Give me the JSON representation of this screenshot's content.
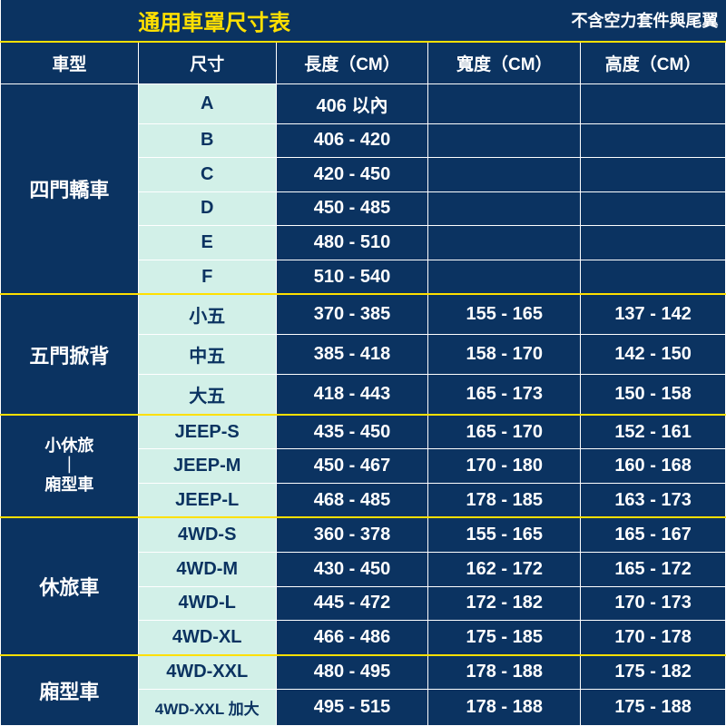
{
  "title": "通用車罩尺寸表",
  "subtitle": "不含空力套件與尾翼",
  "columns": [
    "車型",
    "尺寸",
    "長度（CM）",
    "寬度（CM）",
    "高度（CM）"
  ],
  "groups": [
    {
      "category": "四門轎車",
      "rows": [
        {
          "size": "A",
          "length": "406 以內",
          "width": "",
          "height": ""
        },
        {
          "size": "B",
          "length": "406 - 420",
          "width": "",
          "height": ""
        },
        {
          "size": "C",
          "length": "420 - 450",
          "width": "",
          "height": ""
        },
        {
          "size": "D",
          "length": "450 - 485",
          "width": "",
          "height": ""
        },
        {
          "size": "E",
          "length": "480 - 510",
          "width": "",
          "height": ""
        },
        {
          "size": "F",
          "length": "510 - 540",
          "width": "",
          "height": ""
        }
      ]
    },
    {
      "category": "五門掀背",
      "rows": [
        {
          "size": "小五",
          "length": "370 - 385",
          "width": "155 - 165",
          "height": "137 - 142"
        },
        {
          "size": "中五",
          "length": "385 - 418",
          "width": "158 - 170",
          "height": "142 - 150"
        },
        {
          "size": "大五",
          "length": "418 - 443",
          "width": "165 - 173",
          "height": "150 - 158"
        }
      ]
    },
    {
      "category_lines": [
        "小休旅",
        "｜",
        "廂型車"
      ],
      "rows": [
        {
          "size": "JEEP-S",
          "length": "435 - 450",
          "width": "165 - 170",
          "height": "152 - 161"
        },
        {
          "size": "JEEP-M",
          "length": "450 - 467",
          "width": "170 - 180",
          "height": "160 - 168"
        },
        {
          "size": "JEEP-L",
          "length": "468 - 485",
          "width": "178 - 185",
          "height": "163 - 173"
        }
      ]
    },
    {
      "category": "休旅車",
      "rows": [
        {
          "size": "4WD-S",
          "length": "360 - 378",
          "width": "155 - 165",
          "height": "165 - 167"
        },
        {
          "size": "4WD-M",
          "length": "430 - 450",
          "width": "162 - 172",
          "height": "165 - 172"
        },
        {
          "size": "4WD-L",
          "length": "445 - 472",
          "width": "172 - 182",
          "height": "170 - 173"
        },
        {
          "size": "4WD-XL",
          "length": "466 - 486",
          "width": "175 - 185",
          "height": "170 - 178"
        }
      ]
    },
    {
      "category": "廂型車",
      "rows": [
        {
          "size": "4WD-XXL",
          "length": "480 - 495",
          "width": "178 - 188",
          "height": "175 - 182"
        },
        {
          "size": "4WD-XXL 加大",
          "length": "495 - 515",
          "width": "178 - 188",
          "height": "175 - 188"
        }
      ]
    }
  ],
  "styles": {
    "colors": {
      "bg_dark": "#0b3361",
      "accent_yellow": "#ffe000",
      "size_bg": "#d2f0e8",
      "text_light": "#ffffff"
    },
    "fonts": {
      "title_size_pt": 24,
      "header_size_pt": 19,
      "cell_size_pt": 20,
      "category_size_pt": 22
    },
    "column_widths_pct": [
      19,
      19,
      21,
      21,
      20
    ]
  }
}
